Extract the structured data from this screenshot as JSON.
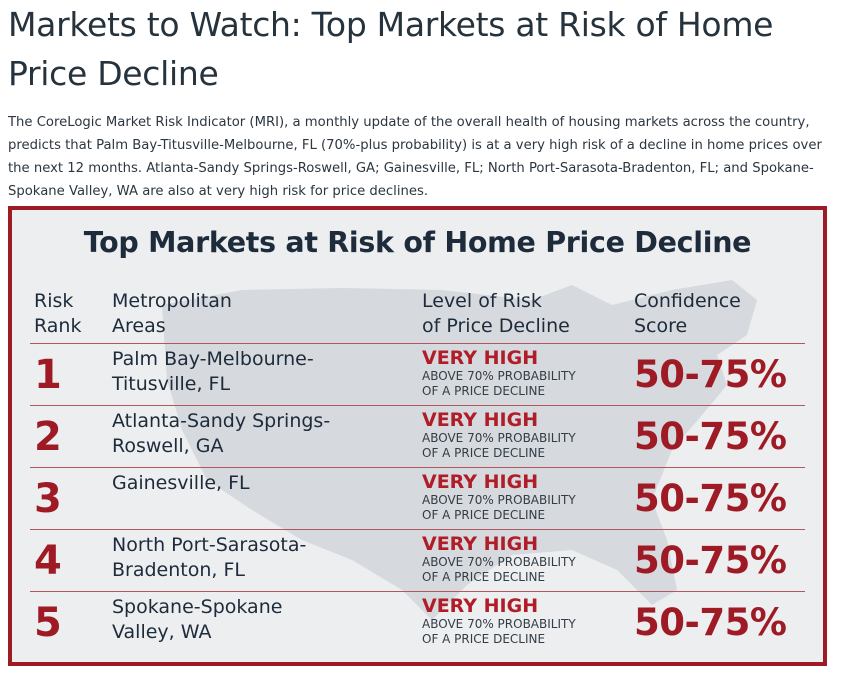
{
  "page": {
    "title": "Markets to Watch: Top Markets at Risk of Home Price Decline",
    "intro": "The CoreLogic Market Risk Indicator (MRI), a monthly update of the overall health of housing markets across the country, predicts that Palm Bay-Titusville-Melbourne, FL (70%-plus probability) is at a very high risk of a decline in home prices over the next 12 months. Atlanta-Sandy Springs-Roswell, GA; Gainesville, FL; North Port-Sarasota-Bradenton, FL; and Spokane-Spokane Valley, WA are also at very high risk for price declines."
  },
  "card": {
    "title": "Top Markets at Risk of Home Price Decline",
    "headers": {
      "rank_line1": "Risk",
      "rank_line2": "Rank",
      "area_line1": "Metropolitan",
      "area_line2": "Areas",
      "level_line1": "Level of Risk",
      "level_line2": "of Price Decline",
      "score_line1": "Confidence",
      "score_line2": "Score"
    },
    "rows": [
      {
        "rank": "1",
        "area_line1": "Palm Bay-Melbourne-",
        "area_line2": "Titusville, FL",
        "level": "VERY HIGH",
        "level_sub1": "ABOVE 70% PROBABILITY",
        "level_sub2": "OF A PRICE DECLINE",
        "score": "50-75%"
      },
      {
        "rank": "2",
        "area_line1": "Atlanta-Sandy Springs-",
        "area_line2": "Roswell, GA",
        "level": "VERY HIGH",
        "level_sub1": "ABOVE 70% PROBABILITY",
        "level_sub2": "OF A PRICE DECLINE",
        "score": "50-75%"
      },
      {
        "rank": "3",
        "area_line1": "Gainesville, FL",
        "area_line2": "",
        "level": "VERY HIGH",
        "level_sub1": "ABOVE 70% PROBABILITY",
        "level_sub2": "OF A PRICE DECLINE",
        "score": "50-75%"
      },
      {
        "rank": "4",
        "area_line1": "North Port-Sarasota-",
        "area_line2": "Bradenton, FL",
        "level": "VERY HIGH",
        "level_sub1": "ABOVE 70% PROBABILITY",
        "level_sub2": "OF A PRICE DECLINE",
        "score": "50-75%"
      },
      {
        "rank": "5",
        "area_line1": "Spokane-Spokane",
        "area_line2": "Valley, WA",
        "level": "VERY HIGH",
        "level_sub1": "ABOVE 70% PROBABILITY",
        "level_sub2": "OF A PRICE DECLINE",
        "score": "50-75%"
      }
    ]
  },
  "colors": {
    "accent": "#9e1b25",
    "text": "#1d2b3b",
    "card_bg": "#eceef0"
  }
}
